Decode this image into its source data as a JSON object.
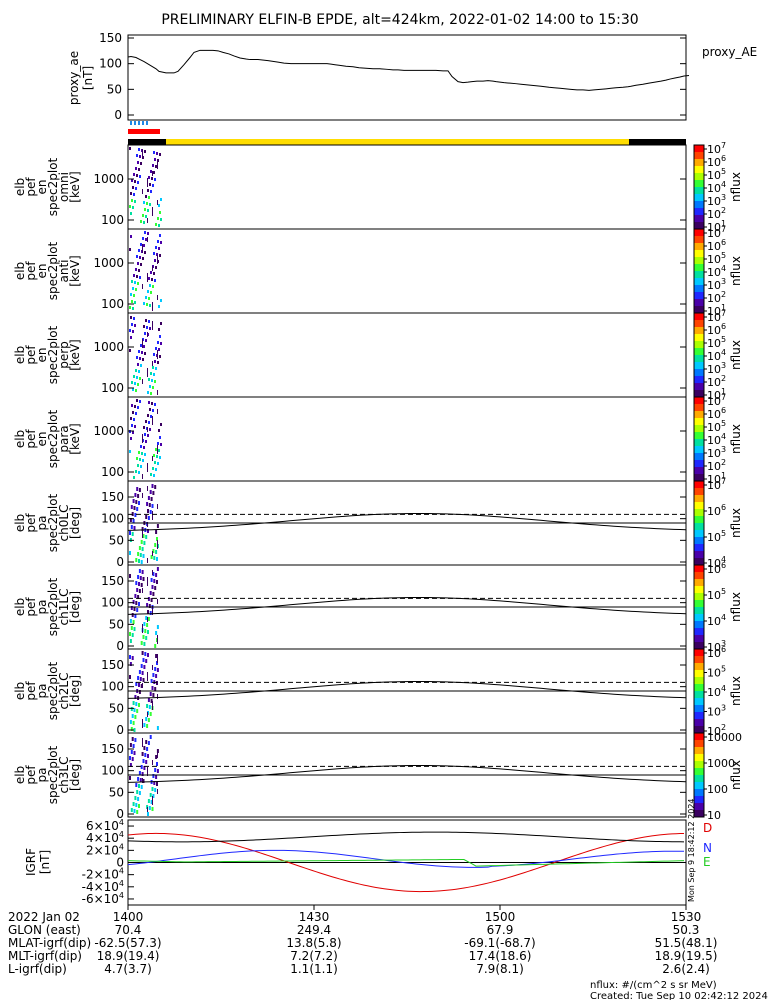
{
  "title": "PRELIMINARY ELFIN-B EPDE, alt=424km, 2022-01-02 14:00 to 15:30",
  "chart_data": [
    {
      "type": "line",
      "panel": "proxy_ae",
      "ylabel": [
        "proxy_ae",
        "[nT]"
      ],
      "legend": "proxy_AE",
      "yticks": [
        "150",
        "100",
        "50",
        "0"
      ],
      "ylim": [
        0,
        150
      ],
      "series": [
        {
          "name": "proxy_AE",
          "x": [
            0,
            3,
            8,
            12,
            16,
            22,
            28,
            31,
            38,
            46,
            50,
            56,
            62,
            66,
            72,
            80,
            85,
            90,
            95,
            101,
            106,
            112,
            118,
            122,
            130,
            140,
            150,
            156,
            163,
            167,
            172,
            178,
            185,
            191,
            195,
            199,
            203,
            207,
            211,
            218,
            225,
            231,
            238,
            245,
            252,
            259,
            265,
            270,
            276,
            282,
            290,
            300,
            308,
            315,
            320,
            324,
            330,
            335,
            340,
            344,
            349,
            355,
            360,
            365,
            368,
            372,
            376,
            382,
            388,
            393,
            398,
            403,
            408,
            413,
            417,
            421,
            426,
            432,
            438,
            443,
            449,
            455,
            461,
            466,
            472,
            478,
            483,
            488,
            495,
            500,
            503,
            508,
            515,
            521,
            527,
            533,
            538,
            542,
            547,
            552,
            556,
            561
          ],
          "y": [
            113,
            114,
            112,
            108,
            104,
            97,
            90,
            85,
            82,
            82,
            85,
            98,
            112,
            122,
            126,
            126,
            126,
            125,
            122,
            119,
            115,
            111,
            109,
            108,
            108,
            106,
            103,
            101,
            100,
            100,
            100,
            100,
            100,
            100,
            100,
            100,
            99,
            98,
            97,
            95,
            94,
            92,
            91,
            90,
            90,
            89,
            88,
            88,
            87,
            87,
            87,
            87,
            87,
            86,
            86,
            75,
            65,
            63,
            64,
            65,
            66,
            66,
            67,
            66,
            65,
            64,
            63,
            62,
            61,
            60,
            59,
            58,
            57,
            56,
            55,
            54,
            53,
            52,
            51,
            50,
            49,
            49,
            48,
            49,
            50,
            51,
            52,
            53,
            54,
            55,
            56,
            58,
            60,
            62,
            64,
            66,
            68,
            70,
            72,
            74,
            76,
            77
          ]
        }
      ]
    },
    {
      "type": "heatmap",
      "panel": "omni",
      "ylabel": [
        "elb",
        "pef",
        "en",
        "spec2plot",
        "omni",
        "[keV]"
      ],
      "yticks": [
        "1000",
        "100"
      ],
      "colorbar": {
        "label": "nflux",
        "ticks": [
          "10^7",
          "10^6",
          "10^5",
          "10^4",
          "10^3",
          "10^2",
          "10^1"
        ]
      }
    },
    {
      "type": "heatmap",
      "panel": "anti",
      "ylabel": [
        "elb",
        "pef",
        "en",
        "spec2plot",
        "anti",
        "[keV]"
      ],
      "yticks": [
        "1000",
        "100"
      ],
      "colorbar": {
        "label": "nflux",
        "ticks": [
          "10^7",
          "10^6",
          "10^5",
          "10^4",
          "10^3",
          "10^2",
          "10^1"
        ]
      }
    },
    {
      "type": "heatmap",
      "panel": "perp",
      "ylabel": [
        "elb",
        "pef",
        "en",
        "spec2plot",
        "perp",
        "[keV]"
      ],
      "yticks": [
        "1000",
        "100"
      ],
      "colorbar": {
        "label": "nflux",
        "ticks": [
          "10^7",
          "10^6",
          "10^5",
          "10^4",
          "10^3",
          "10^2",
          "10^1"
        ]
      }
    },
    {
      "type": "heatmap",
      "panel": "para",
      "ylabel": [
        "elb",
        "pef",
        "en",
        "spec2plot",
        "para",
        "[keV]"
      ],
      "yticks": [
        "1000",
        "100"
      ],
      "colorbar": {
        "label": "nflux",
        "ticks": [
          "10^7",
          "10^6",
          "10^5",
          "10^4",
          "10^3",
          "10^2",
          "10^1"
        ]
      }
    },
    {
      "type": "heatmap",
      "panel": "ch0LC",
      "ylabel": [
        "elb",
        "pef",
        "pa",
        "spec2plot",
        "ch0LC",
        "[deg]"
      ],
      "yticks": [
        "150",
        "100",
        "50",
        "0"
      ],
      "colorbar": {
        "label": "nflux",
        "ticks": [
          "10^7",
          "10^6",
          "10^5",
          "10^4"
        ]
      }
    },
    {
      "type": "heatmap",
      "panel": "ch1LC",
      "ylabel": [
        "elb",
        "pef",
        "pa",
        "spec2plot",
        "ch1LC",
        "[deg]"
      ],
      "yticks": [
        "150",
        "100",
        "50",
        "0"
      ],
      "colorbar": {
        "label": "nflux",
        "ticks": [
          "10^6",
          "10^5",
          "10^4",
          "10^3"
        ]
      }
    },
    {
      "type": "heatmap",
      "panel": "ch2LC",
      "ylabel": [
        "elb",
        "pef",
        "pa",
        "spec2plot",
        "ch2LC",
        "[deg]"
      ],
      "yticks": [
        "150",
        "100",
        "50",
        "0"
      ],
      "colorbar": {
        "label": "nflux",
        "ticks": [
          "10^6",
          "10^5",
          "10^4",
          "10^3",
          "10^2"
        ]
      }
    },
    {
      "type": "heatmap",
      "panel": "ch3LC",
      "ylabel": [
        "elb",
        "pef",
        "pa",
        "spec2plot",
        "ch3LC",
        "[deg]"
      ],
      "yticks": [
        "150",
        "100",
        "50",
        "0"
      ],
      "colorbar": {
        "label": "nflux",
        "ticks": [
          "10000",
          "1000",
          "100",
          "10"
        ]
      }
    },
    {
      "type": "line",
      "panel": "igrf",
      "ylabel": [
        "IGRF",
        "[nT]"
      ],
      "yticks": [
        {
          "m": "6",
          "e": "4",
          "v": 60000
        },
        {
          "m": "4",
          "e": "4",
          "v": 40000
        },
        {
          "m": "2",
          "e": "4",
          "v": 20000
        },
        {
          "m": "0",
          "e": "",
          "v": 0
        },
        {
          "m": "-2",
          "e": "4",
          "v": -20000
        },
        {
          "m": "-4",
          "e": "4",
          "v": -40000
        },
        {
          "m": "-6",
          "e": "4",
          "v": -60000
        }
      ],
      "ylim": [
        -65000,
        65000
      ],
      "legend": [
        "D",
        "N",
        "E"
      ],
      "colors": {
        "D": "#e00000",
        "N": "#1f28ff",
        "E": "#22cc22",
        "total": "#000000"
      }
    }
  ],
  "xaxis": {
    "labels": [
      "2022 Jan 02",
      "GLON (east)",
      "MLAT-igrf(dip)",
      "MLT-igrf(dip)",
      "L-igrf(dip)"
    ],
    "columns": [
      [
        "1400",
        "70.4",
        "-62.5(57.3)",
        "18.9(19.4)",
        "4.7(3.7)"
      ],
      [
        "1430",
        "249.4",
        "13.8(5.8)",
        "7.2(7.2)",
        "1.1(1.1)"
      ],
      [
        "1500",
        "67.9",
        "-69.1(-68.7)",
        "17.4(18.6)",
        "7.9(8.1)"
      ],
      [
        "1530",
        "50.3",
        "51.5(48.1)",
        "18.9(19.5)",
        "2.6(2.4)"
      ]
    ]
  },
  "side_stamp": "Mon Sep 9 18:42:12 2024",
  "footer": {
    "units": "nflux: #/(cm^2 s sr MeV)",
    "created": "Created: Tue Sep 10 02:42:12 2024"
  },
  "colors": {
    "bar_red": "#ff0000",
    "bar_yellow": "#ffdd00",
    "bar_black": "#000000",
    "ticks_blue": "#1f88e5"
  }
}
